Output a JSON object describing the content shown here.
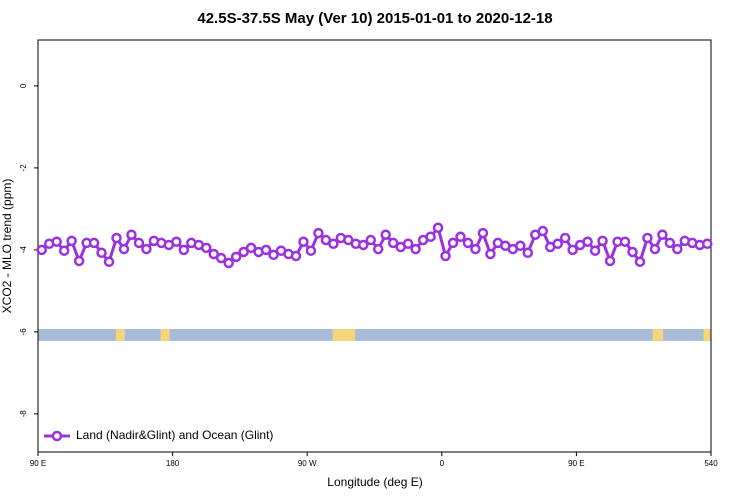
{
  "chart_data": {
    "type": "line",
    "title": "42.5S-37.5S May (Ver 10)   2015-01-01 to 2020-12-18",
    "x_label": "Longitude (deg E)",
    "y_label": "XCO2 - MLO trend (ppm)",
    "x": [
      92.5,
      97.5,
      102.5,
      107.5,
      112.5,
      117.5,
      122.5,
      127.5,
      132.5,
      137.5,
      142.5,
      147.5,
      152.5,
      157.5,
      162.5,
      167.5,
      172.5,
      177.5,
      182.5,
      187.5,
      192.5,
      197.5,
      202.5,
      207.5,
      212.5,
      217.5,
      222.5,
      227.5,
      232.5,
      237.5,
      242.5,
      247.5,
      252.5,
      257.5,
      262.5,
      267.5,
      272.5,
      277.5,
      282.5,
      287.5,
      292.5,
      297.5,
      302.5,
      307.5,
      312.5,
      317.5,
      322.5,
      327.5,
      332.5,
      337.5,
      342.5,
      347.5,
      352.5,
      357.5,
      362.5,
      367.5,
      372.5,
      377.5,
      382.5,
      387.5,
      392.5,
      397.5,
      402.5,
      407.5,
      412.5,
      417.5,
      422.5,
      427.5,
      432.5,
      437.5,
      442.5,
      447.5,
      452.5,
      457.5,
      462.5,
      467.5,
      472.5,
      477.5,
      482.5,
      487.5,
      492.5,
      497.5,
      502.5,
      507.5,
      512.5,
      517.5,
      522.5,
      527.5,
      532.5,
      537.5
    ],
    "series": [
      {
        "name": "Land (Nadir&Glint) and Ocean (Glint)",
        "color": "#9b30e0",
        "values": [
          -4.0,
          -3.85,
          -3.8,
          -4.02,
          -3.78,
          -4.27,
          -3.83,
          -3.83,
          -4.07,
          -4.29,
          -3.71,
          -3.98,
          -3.63,
          -3.83,
          -3.98,
          -3.78,
          -3.83,
          -3.88,
          -3.8,
          -4.0,
          -3.83,
          -3.88,
          -3.95,
          -4.1,
          -4.2,
          -4.32,
          -4.17,
          -4.05,
          -3.95,
          -4.05,
          -4.0,
          -4.12,
          -4.02,
          -4.1,
          -4.15,
          -3.8,
          -4.02,
          -3.59,
          -3.76,
          -3.85,
          -3.71,
          -3.76,
          -3.85,
          -3.88,
          -3.76,
          -3.98,
          -3.63,
          -3.83,
          -3.93,
          -3.85,
          -3.98,
          -3.76,
          -3.68,
          -3.46,
          -4.15,
          -3.83,
          -3.68,
          -3.83,
          -3.98,
          -3.59,
          -4.1,
          -3.83,
          -3.9,
          -3.98,
          -3.9,
          -4.07,
          -3.63,
          -3.54,
          -3.93,
          -3.85,
          -3.71,
          -4.0,
          -3.88,
          -3.8,
          -4.02,
          -3.78,
          -4.27,
          -3.8,
          -3.8,
          -4.05,
          -4.29,
          -3.71,
          -3.98,
          -3.63,
          -3.83,
          -3.98,
          -3.78,
          -3.83,
          -3.88,
          -3.85
        ]
      }
    ],
    "xlim": [
      90,
      540
    ],
    "xticks": [
      {
        "value": 90,
        "label": "90 E"
      },
      180,
      {
        "value": 270,
        "label": "90 W"
      },
      {
        "value": 360,
        "label": "0"
      },
      {
        "value": 450,
        "label": "90 E"
      },
      540
    ],
    "ylim": [
      -8.93,
      1.12
    ],
    "yticks": [
      0,
      -2,
      -4,
      -6,
      -8
    ],
    "legend": "bottom-left",
    "surface_band": {
      "ylim": [
        -6.22,
        -5.93
      ],
      "ocean_color": "#a7bcd9",
      "land_color": "#f5d57a",
      "land": [
        [
          142,
          148
        ],
        [
          172,
          178
        ],
        [
          287,
          302
        ],
        [
          501,
          508
        ],
        [
          535,
          540
        ]
      ]
    }
  }
}
